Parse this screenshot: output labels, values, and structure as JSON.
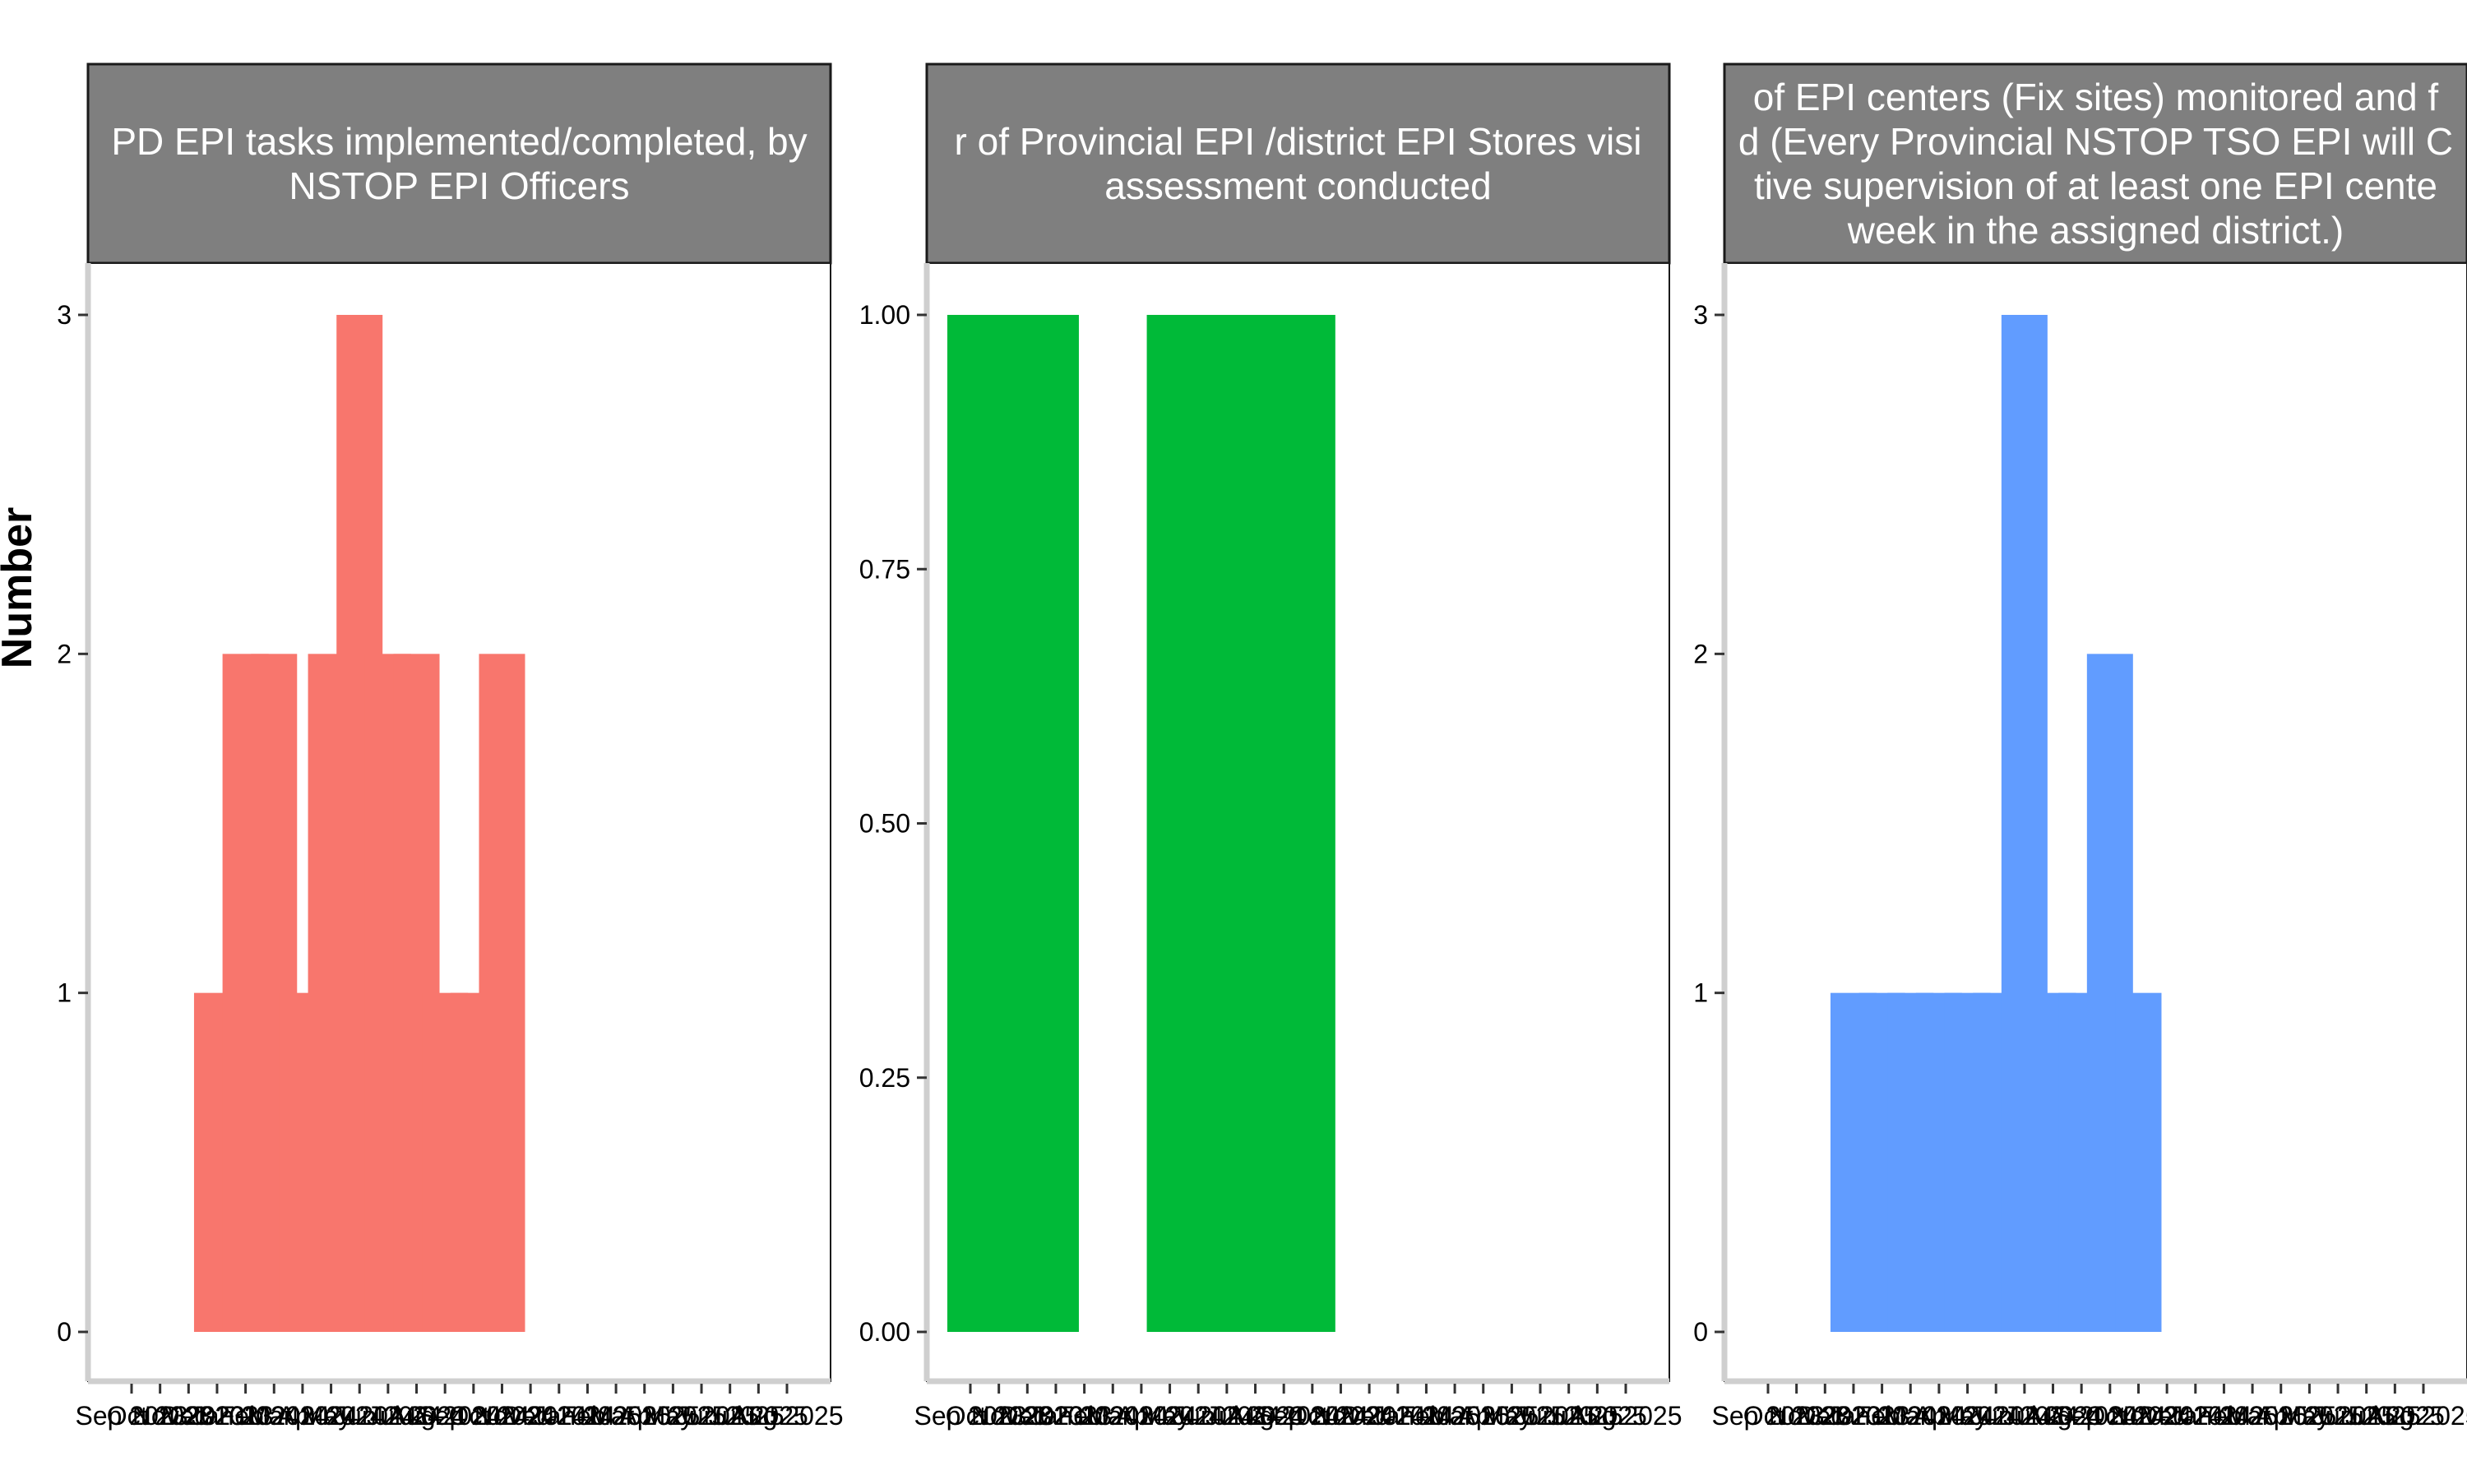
{
  "chart_data": {
    "type": "bar",
    "ylabel": "Number",
    "x_tick_labels": [
      "Sep 2023",
      "Oct 2023",
      "Nov 2023",
      "Dec 2023",
      "Jan 2024",
      "Feb 2024",
      "Mar 2024",
      "Apr 2024",
      "May 2024",
      "Jun 2024",
      "Jul 2024",
      "Aug 2024",
      "Sep 2024",
      "Oct 2024",
      "Nov 2024",
      "Dec 2024",
      "Jan 2025",
      "Feb 2025",
      "Mar 2025",
      "Apr 2025",
      "May 2025",
      "Jun 2025",
      "Jul 2025",
      "Aug 2025"
    ],
    "panels": [
      {
        "title_lines": [
          "PD EPI tasks implemented/completed, by",
          "NSTOP EPI Officers"
        ],
        "color": "#F8766D",
        "ylim": [
          0,
          3
        ],
        "yticks": [
          0,
          1,
          2,
          3
        ],
        "ytick_labels": [
          "0",
          "1",
          "2",
          "3"
        ],
        "bars": [
          {
            "x": "Dec 2023",
            "value": 1
          },
          {
            "x": "Jan 2024",
            "value": 2
          },
          {
            "x": "Feb 2024",
            "value": 2
          },
          {
            "x": "Mar 2024",
            "value": 1
          },
          {
            "x": "Apr 2024",
            "value": 2
          },
          {
            "x": "May 2024",
            "value": 3
          },
          {
            "x": "Jun 2024",
            "value": 2
          },
          {
            "x": "Jul 2024",
            "value": 2
          },
          {
            "x": "Aug 2024",
            "value": 1
          },
          {
            "x": "Sep 2024",
            "value": 1
          },
          {
            "x": "Oct 2024",
            "value": 2
          }
        ]
      },
      {
        "title_lines": [
          "r of Provincial EPI /district EPI Stores visi",
          "assessment conducted"
        ],
        "color": "#00BA38",
        "ylim": [
          0,
          1
        ],
        "yticks": [
          0,
          0.25,
          0.5,
          0.75,
          1
        ],
        "ytick_labels": [
          "0.00",
          "0.25",
          "0.50",
          "0.75",
          "1.00"
        ],
        "bars": [
          {
            "x": "Sep 2023",
            "value": 1
          },
          {
            "x": "Oct 2023",
            "value": 1
          },
          {
            "x": "Nov 2023",
            "value": 1
          },
          {
            "x": "Dec 2023",
            "value": 1
          },
          {
            "x": "Apr 2024",
            "value": 1
          },
          {
            "x": "May 2024",
            "value": 1
          },
          {
            "x": "Jun 2024",
            "value": 1
          },
          {
            "x": "Jul 2024",
            "value": 1
          },
          {
            "x": "Aug 2024",
            "value": 1
          },
          {
            "x": "Sep 2024",
            "value": 1
          }
        ]
      },
      {
        "title_lines": [
          "of EPI centers (Fix sites) monitored and f",
          "d (Every Provincial NSTOP TSO EPI will C",
          "tive supervision of at least one EPI cente",
          "week in the assigned district.)"
        ],
        "color": "#619CFF",
        "ylim": [
          0,
          3
        ],
        "yticks": [
          0,
          1,
          2,
          3
        ],
        "ytick_labels": [
          "0",
          "1",
          "2",
          "3"
        ],
        "bars": [
          {
            "x": "Dec 2023",
            "value": 1
          },
          {
            "x": "Jan 2024",
            "value": 1
          },
          {
            "x": "Feb 2024",
            "value": 1
          },
          {
            "x": "Mar 2024",
            "value": 1
          },
          {
            "x": "Apr 2024",
            "value": 1
          },
          {
            "x": "May 2024",
            "value": 1
          },
          {
            "x": "Jun 2024",
            "value": 3
          },
          {
            "x": "Jul 2024",
            "value": 1
          },
          {
            "x": "Aug 2024",
            "value": 1
          },
          {
            "x": "Sep 2024",
            "value": 2
          },
          {
            "x": "Oct 2024",
            "value": 1
          }
        ]
      }
    ]
  }
}
